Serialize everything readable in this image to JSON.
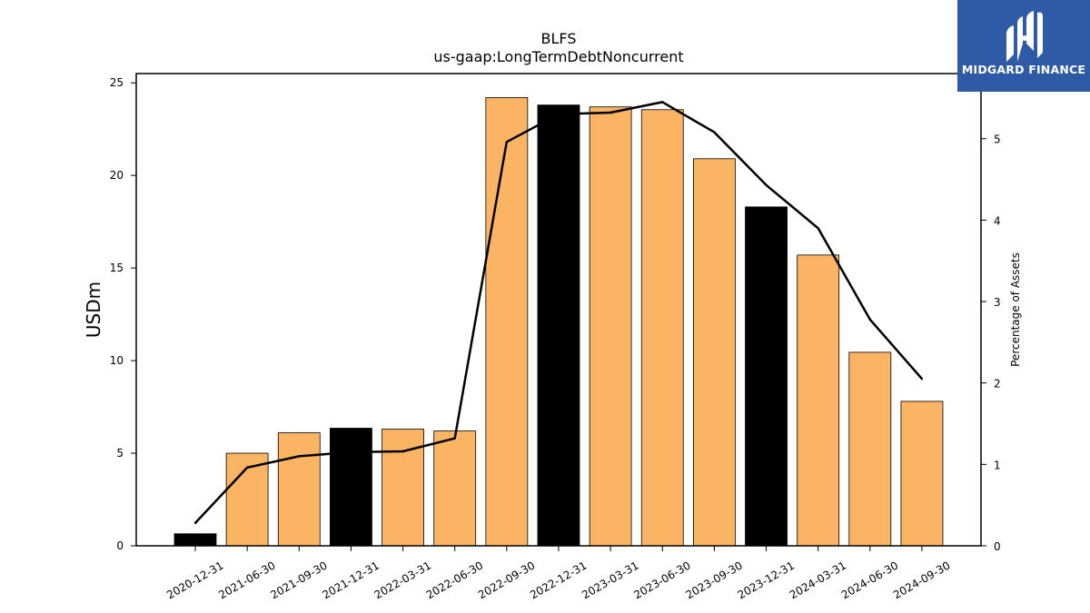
{
  "brand": {
    "name": "MIDGARD FINANCE",
    "logo_icon": "midgard-m-logo-icon",
    "background_color": "#2f5aa6"
  },
  "chart_data": {
    "type": "bar",
    "title": "BLFS",
    "subtitle": "us-gaap:LongTermDebtNoncurrent",
    "ylabel": "USDm",
    "y2label": "Percentage of Assets",
    "ylim": [
      0,
      25.5
    ],
    "y2lim": [
      0,
      5.8
    ],
    "yticks": [
      0,
      5,
      10,
      15,
      20,
      25
    ],
    "y2ticks": [
      0,
      1,
      2,
      3,
      4,
      5
    ],
    "categories": [
      "2020-12-31",
      "2021-06-30",
      "2021-09-30",
      "2021-12-31",
      "2022-03-31",
      "2022-06-30",
      "2022-09-30",
      "2022-12-31",
      "2023-03-31",
      "2023-06-30",
      "2023-09-30",
      "2023-12-31",
      "2024-03-31",
      "2024-06-30",
      "2024-09-30"
    ],
    "series": [
      {
        "values": [
          0.65,
          5.0,
          6.1,
          6.35,
          6.3,
          6.2,
          24.2,
          23.8,
          23.7,
          23.55,
          20.9,
          18.3,
          15.7,
          10.45,
          7.8
        ],
        "colors": [
          "#000000",
          "#fbb464",
          "#fbb464",
          "#000000",
          "#fbb464",
          "#fbb464",
          "#fbb464",
          "#000000",
          "#fbb464",
          "#fbb464",
          "#fbb464",
          "#000000",
          "#fbb464",
          "#fbb464",
          "#fbb464"
        ]
      },
      {
        "axis": "secondary",
        "type": "line",
        "color": "#000000",
        "values": [
          0.28,
          0.96,
          1.1,
          1.15,
          1.16,
          1.32,
          4.96,
          5.3,
          5.32,
          5.45,
          5.08,
          4.43,
          3.9,
          2.78,
          2.05
        ]
      }
    ],
    "grid": false,
    "legend": "none"
  }
}
